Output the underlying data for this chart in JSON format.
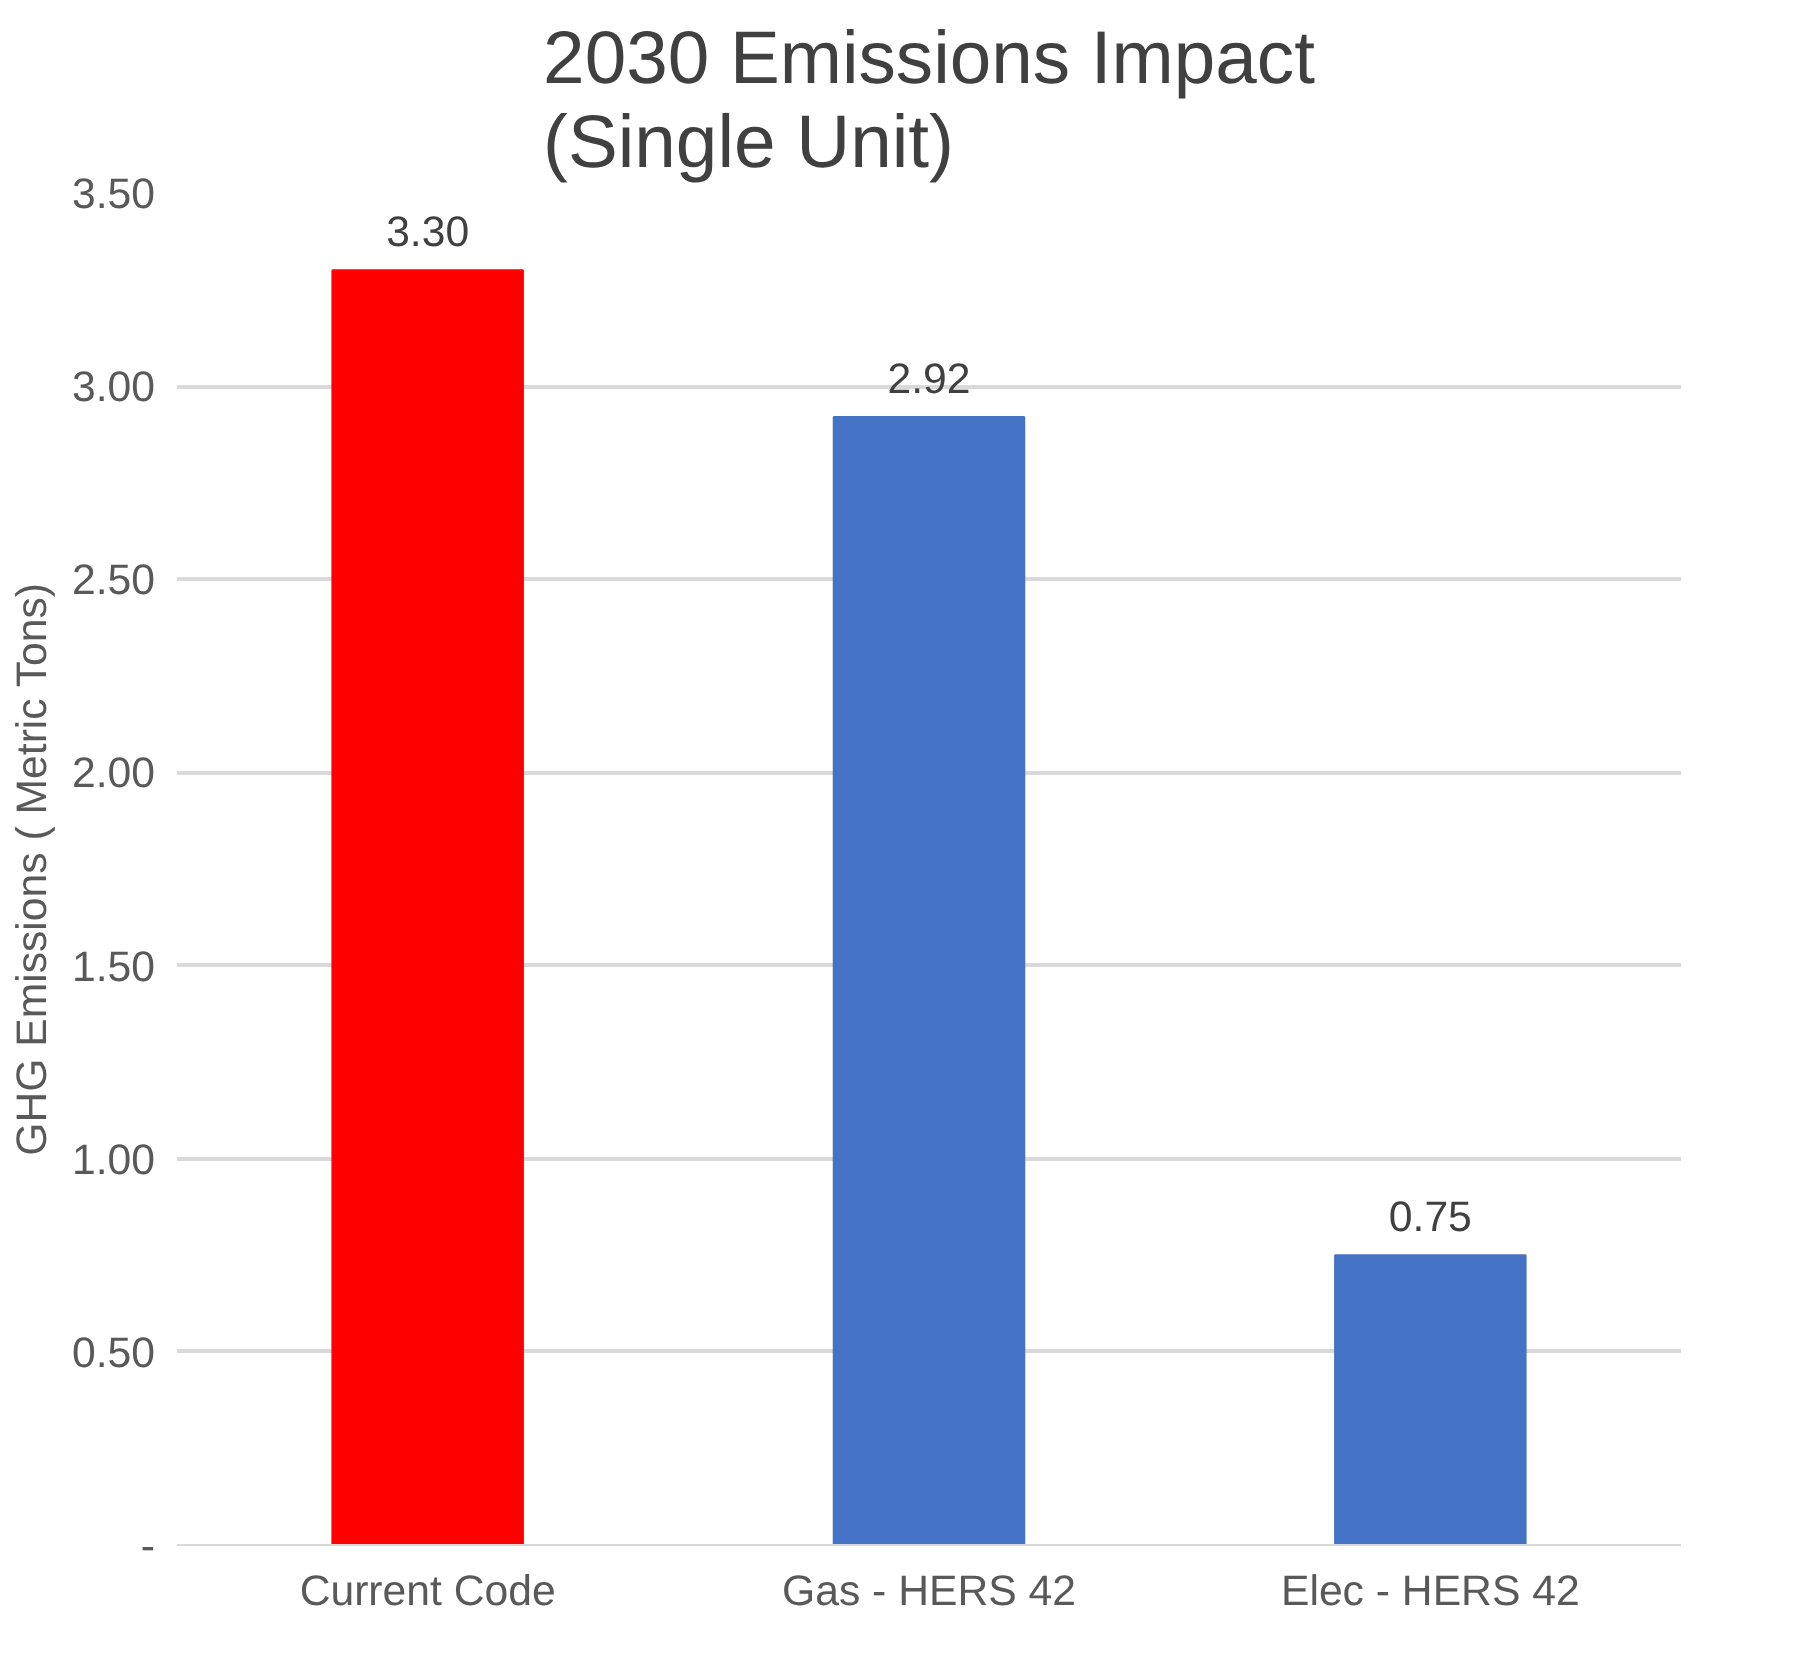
{
  "chart_data": {
    "type": "bar",
    "title": "2030 Emissions Impact\n(Single Unit)",
    "ylabel": "GHG Emissions ( Metric Tons)",
    "categories": [
      "Current Code",
      "Gas - HERS 42",
      "Elec - HERS 42"
    ],
    "values": [
      3.3,
      2.92,
      0.75
    ],
    "colors": [
      "#ff0000",
      "#4472c4",
      "#4472c4"
    ],
    "ylim": [
      0,
      3.5
    ],
    "yticks": [
      {
        "value": 0,
        "label": "-"
      },
      {
        "value": 0.5,
        "label": "0.50"
      },
      {
        "value": 1,
        "label": "1.00"
      },
      {
        "value": 1.5,
        "label": "1.50"
      },
      {
        "value": 2,
        "label": "2.00"
      },
      {
        "value": 2.5,
        "label": "2.50"
      },
      {
        "value": 3,
        "label": "3.00"
      },
      {
        "value": 3.5,
        "label": "3.50"
      }
    ],
    "value_labels": [
      "3.30",
      "2.92",
      "0.75"
    ],
    "grid": "y"
  }
}
